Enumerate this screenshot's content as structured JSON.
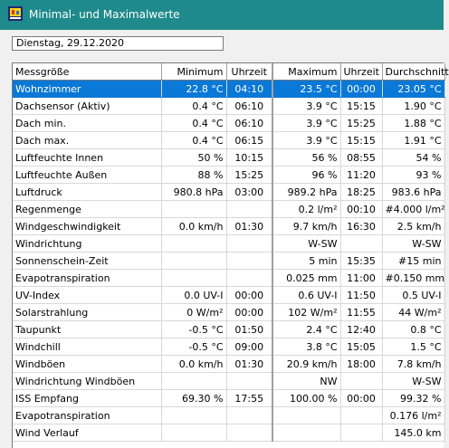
{
  "window": {
    "title": "Minimal- und Maximalwerte",
    "icon": "app-icon"
  },
  "date": "Dienstag, 29.12.2020",
  "table": {
    "headers": [
      "Messgröße",
      "Minimum",
      "Uhrzeit",
      "Maximum",
      "Uhrzeit",
      "Durchschnitt"
    ],
    "selected_row": 0,
    "rows": [
      [
        "Wohnzimmer",
        "22.8 °C",
        "04:10",
        "23.5 °C",
        "00:00",
        "23.05 °C"
      ],
      [
        "Dachsensor (Aktiv)",
        "0.4 °C",
        "06:10",
        "3.9 °C",
        "15:15",
        "1.90 °C"
      ],
      [
        "Dach min.",
        "0.4 °C",
        "06:10",
        "3.9 °C",
        "15:25",
        "1.88 °C"
      ],
      [
        "Dach max.",
        "0.4 °C",
        "06:15",
        "3.9 °C",
        "15:15",
        "1.91 °C"
      ],
      [
        "Luftfeuchte Innen",
        "50 %",
        "10:15",
        "56 %",
        "08:55",
        "54 %"
      ],
      [
        "Luftfeuchte Außen",
        "88 %",
        "15:25",
        "96 %",
        "11:20",
        "93 %"
      ],
      [
        "Luftdruck",
        "980.8 hPa",
        "03:00",
        "989.2 hPa",
        "18:25",
        "983.6 hPa"
      ],
      [
        "Regenmenge",
        "",
        "",
        "0.2 l/m²",
        "00:10",
        "#4.000 l/m²"
      ],
      [
        "Windgeschwindigkeit",
        "0.0 km/h",
        "01:30",
        "9.7 km/h",
        "16:30",
        "2.5 km/h"
      ],
      [
        "Windrichtung",
        "",
        "",
        "W-SW",
        "",
        "W-SW"
      ],
      [
        "Sonnenschein-Zeit",
        "",
        "",
        "5 min",
        "15:35",
        "#15 min"
      ],
      [
        "Evapotranspiration",
        "",
        "",
        "0.025 mm",
        "11:00",
        "#0.150 mm"
      ],
      [
        "UV-Index",
        "0.0 UV-I",
        "00:00",
        "0.6 UV-I",
        "11:50",
        "0.5 UV-I"
      ],
      [
        "Solarstrahlung",
        "0 W/m²",
        "00:00",
        "102 W/m²",
        "11:55",
        "44 W/m²"
      ],
      [
        "Taupunkt",
        "-0.5 °C",
        "01:50",
        "2.4 °C",
        "12:40",
        "0.8 °C"
      ],
      [
        "Windchill",
        "-0.5 °C",
        "09:00",
        "3.8 °C",
        "15:05",
        "1.5 °C"
      ],
      [
        "Windböen",
        "0.0 km/h",
        "01:30",
        "20.9 km/h",
        "18:00",
        "7.8 km/h"
      ],
      [
        "Windrichtung Windböen",
        "",
        "",
        "NW",
        "",
        "W-SW"
      ],
      [
        "ISS Empfang",
        "69.30 %",
        "17:55",
        "100.00 %",
        "00:00",
        "99.32 %"
      ],
      [
        "Evapotranspiration",
        "",
        "",
        "",
        "",
        "0.176 l/m²"
      ],
      [
        "Wind Verlauf",
        "",
        "",
        "",
        "",
        "145.0 km"
      ]
    ]
  },
  "colors": {
    "titlebar": "#1f8a8b",
    "selection": "#0a78d7"
  }
}
